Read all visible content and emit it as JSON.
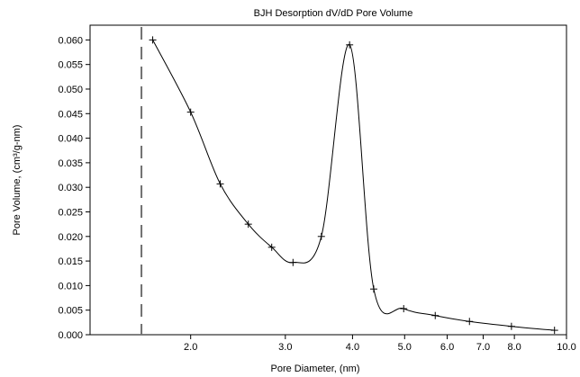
{
  "chart_data": {
    "type": "line",
    "title": "BJH Desorption dV/dD Pore Volume",
    "xlabel": "Pore Diameter, (nm)",
    "ylabel": "Pore Volume, (cm³/g-nm)",
    "x_scale": "log",
    "xlim": [
      1.3,
      10.0
    ],
    "ylim": [
      0.0,
      0.063
    ],
    "x_ticks": [
      {
        "value": 2.0,
        "label": "2.0"
      },
      {
        "value": 3.0,
        "label": "3.0"
      },
      {
        "value": 4.0,
        "label": "4.0"
      },
      {
        "value": 5.0,
        "label": "5.0"
      },
      {
        "value": 6.0,
        "label": "6.0"
      },
      {
        "value": 7.0,
        "label": "7.0"
      },
      {
        "value": 8.0,
        "label": "8.0"
      },
      {
        "value": 10.0,
        "label": "10.0"
      }
    ],
    "y_ticks": [
      {
        "value": 0.0,
        "label": "0.000"
      },
      {
        "value": 0.005,
        "label": "0.005"
      },
      {
        "value": 0.01,
        "label": "0.010"
      },
      {
        "value": 0.015,
        "label": "0.015"
      },
      {
        "value": 0.02,
        "label": "0.020"
      },
      {
        "value": 0.025,
        "label": "0.025"
      },
      {
        "value": 0.03,
        "label": "0.030"
      },
      {
        "value": 0.035,
        "label": "0.035"
      },
      {
        "value": 0.04,
        "label": "0.040"
      },
      {
        "value": 0.045,
        "label": "0.045"
      },
      {
        "value": 0.05,
        "label": "0.050"
      },
      {
        "value": 0.055,
        "label": "0.055"
      },
      {
        "value": 0.06,
        "label": "0.060"
      }
    ],
    "vertical_marker_x": 1.62,
    "series": [
      {
        "values": [
          {
            "x": 1.7,
            "y": 0.06
          },
          {
            "x": 2.0,
            "y": 0.0453
          },
          {
            "x": 2.27,
            "y": 0.0307
          },
          {
            "x": 2.56,
            "y": 0.0225
          },
          {
            "x": 2.83,
            "y": 0.0178
          },
          {
            "x": 3.1,
            "y": 0.0147
          },
          {
            "x": 3.5,
            "y": 0.02
          },
          {
            "x": 3.95,
            "y": 0.059
          },
          {
            "x": 4.38,
            "y": 0.0093
          },
          {
            "x": 4.98,
            "y": 0.0053
          },
          {
            "x": 5.7,
            "y": 0.0039
          },
          {
            "x": 6.6,
            "y": 0.0027
          },
          {
            "x": 7.9,
            "y": 0.0017
          },
          {
            "x": 9.5,
            "y": 0.0009
          }
        ]
      }
    ]
  }
}
